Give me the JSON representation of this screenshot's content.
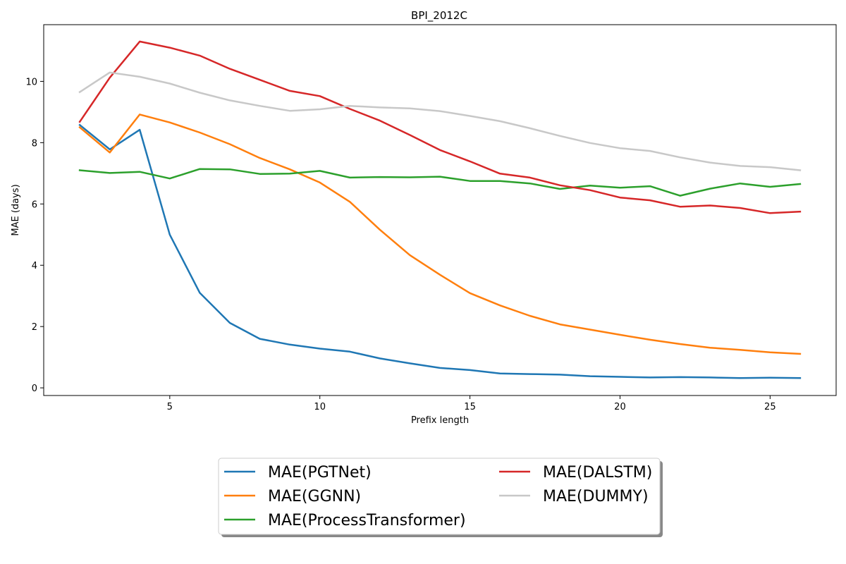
{
  "chart_data": {
    "type": "line",
    "title": "BPI_2012C",
    "xlabel": "Prefix length",
    "ylabel": "MAE (days)",
    "xlim": [
      0.8,
      27.2
    ],
    "ylim": [
      -0.25,
      11.85
    ],
    "xticks": [
      5,
      10,
      15,
      20,
      25
    ],
    "yticks": [
      0,
      2,
      4,
      6,
      8,
      10
    ],
    "grid": false,
    "legend_position": "bottom-center",
    "x": [
      2,
      3,
      4,
      5,
      6,
      7,
      8,
      9,
      10,
      11,
      12,
      13,
      14,
      15,
      16,
      17,
      18,
      19,
      20,
      21,
      22,
      23,
      24,
      25,
      26
    ],
    "series": [
      {
        "name": "MAE(PGTNet)",
        "color": "#1f77b4",
        "values": [
          8.58,
          7.78,
          8.42,
          5.0,
          3.1,
          2.12,
          1.6,
          1.41,
          1.28,
          1.18,
          0.96,
          0.8,
          0.65,
          0.58,
          0.47,
          0.45,
          0.43,
          0.38,
          0.36,
          0.34,
          0.35,
          0.34,
          0.32,
          0.33,
          0.32
        ]
      },
      {
        "name": "MAE(GGNN)",
        "color": "#ff7f0e",
        "values": [
          8.5,
          7.68,
          8.92,
          8.66,
          8.33,
          7.95,
          7.5,
          7.13,
          6.7,
          6.07,
          5.16,
          4.33,
          3.69,
          3.09,
          2.69,
          2.35,
          2.07,
          1.9,
          1.73,
          1.57,
          1.43,
          1.31,
          1.24,
          1.16,
          1.11
        ]
      },
      {
        "name": "MAE(ProcessTransformer)",
        "color": "#2ca02c",
        "values": [
          7.1,
          7.01,
          7.05,
          6.83,
          7.14,
          7.13,
          6.98,
          6.99,
          7.08,
          6.86,
          6.88,
          6.87,
          6.89,
          6.75,
          6.75,
          6.67,
          6.49,
          6.6,
          6.53,
          6.58,
          6.27,
          6.5,
          6.67,
          6.56,
          6.65
        ]
      },
      {
        "name": "MAE(DALSTM)",
        "color": "#d62728",
        "values": [
          8.68,
          10.12,
          11.3,
          11.1,
          10.84,
          10.41,
          10.05,
          9.69,
          9.52,
          9.1,
          8.72,
          8.25,
          7.76,
          7.39,
          6.99,
          6.86,
          6.61,
          6.45,
          6.21,
          6.12,
          5.91,
          5.95,
          5.87,
          5.7,
          5.75
        ]
      },
      {
        "name": "MAE(DUMMY)",
        "color": "#c8c8c8",
        "values": [
          9.65,
          10.29,
          10.15,
          9.93,
          9.63,
          9.38,
          9.2,
          9.04,
          9.09,
          9.2,
          9.15,
          9.12,
          9.03,
          8.87,
          8.7,
          8.47,
          8.22,
          7.99,
          7.82,
          7.73,
          7.52,
          7.35,
          7.24,
          7.2,
          7.1
        ]
      }
    ]
  }
}
